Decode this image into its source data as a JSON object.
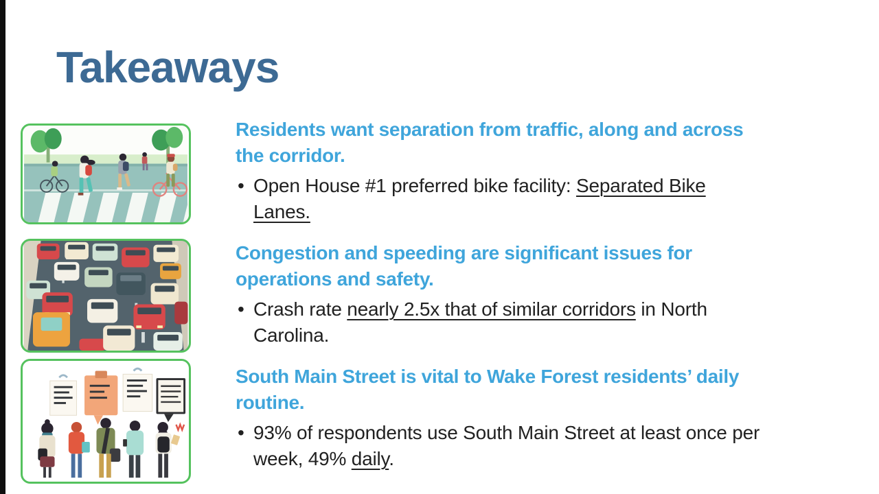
{
  "title": "Takeaways",
  "bullet_glyph": "•",
  "colors": {
    "title": "#3d6a94",
    "heading": "#3fa5db",
    "body": "#212121",
    "image_border": "#55c25e",
    "left_bar": "#0f0f0f"
  },
  "blocks": [
    {
      "image": "pedestrians-crossing-illustration",
      "heading_lines": [
        "Residents want separation from traffic, along and across",
        "the corridor."
      ],
      "bullet_lines": [
        {
          "segments": [
            {
              "text": "Open House #1 preferred bike facility: ",
              "underline": false
            },
            {
              "text": "Separated Bike",
              "underline": true
            }
          ]
        },
        {
          "segments": [
            {
              "text": "Lanes.",
              "underline": true
            }
          ]
        }
      ]
    },
    {
      "image": "traffic-congestion-illustration",
      "heading_lines": [
        "Congestion and speeding are significant issues for",
        "operations and safety."
      ],
      "bullet_lines": [
        {
          "segments": [
            {
              "text": "Crash rate ",
              "underline": false
            },
            {
              "text": "nearly 2.5x that of similar corridors",
              "underline": true
            },
            {
              "text": " in North",
              "underline": false
            }
          ]
        },
        {
          "segments": [
            {
              "text": "Carolina.",
              "underline": false
            }
          ]
        }
      ]
    },
    {
      "image": "public-engagement-illustration",
      "heading_lines": [
        "South Main Street is vital to Wake Forest residents’ daily",
        "routine."
      ],
      "bullet_lines": [
        {
          "segments": [
            {
              "text": "93% of respondents use South Main Street at least once per",
              "underline": false
            }
          ]
        },
        {
          "segments": [
            {
              "text": "week, 49% ",
              "underline": false
            },
            {
              "text": "daily",
              "underline": true
            },
            {
              "text": ".",
              "underline": false
            }
          ]
        }
      ]
    }
  ]
}
